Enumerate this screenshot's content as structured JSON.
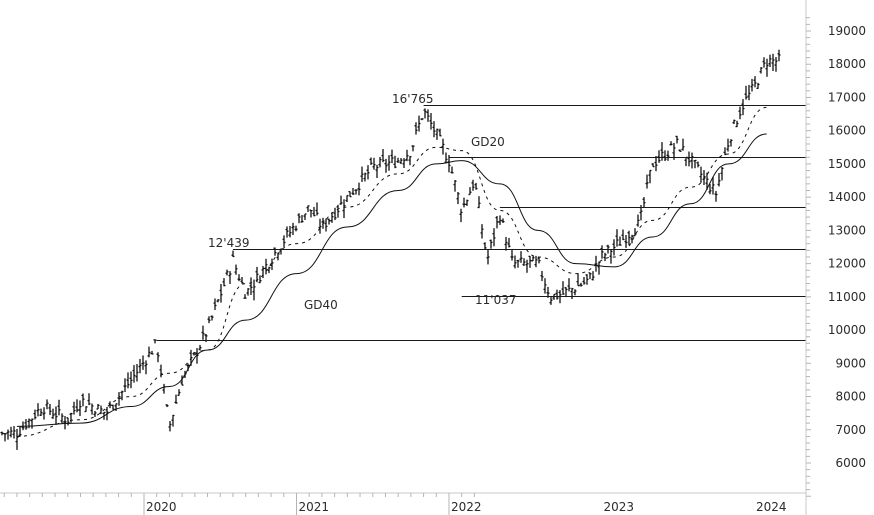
{
  "chart_data": {
    "type": "line",
    "subtype": "ohlc-bar-weekly-with-moving-averages",
    "title": "",
    "xlabel": "",
    "ylabel": "",
    "ylim": [
      5000,
      19500
    ],
    "y_ticks": [
      6000,
      7000,
      8000,
      9000,
      10000,
      11000,
      12000,
      13000,
      14000,
      15000,
      16000,
      17000,
      18000,
      19000
    ],
    "x_ticks": [
      "2020",
      "2021",
      "2022",
      "2023",
      "2024"
    ],
    "grid": false,
    "y_axis_position": "right",
    "annotations": [
      {
        "text": "16'765",
        "value": 16765,
        "type": "level-label"
      },
      {
        "text": "12'439",
        "value": 12439,
        "type": "level-label"
      },
      {
        "text": "11'037",
        "value": 11037,
        "type": "level-label"
      },
      {
        "text": "GD20",
        "type": "moving-average-label"
      },
      {
        "text": "GD40",
        "type": "moving-average-label"
      }
    ],
    "horizontal_levels": [
      {
        "value": 16765,
        "from": "2021-11"
      },
      {
        "value": 15220,
        "from": "2022-01"
      },
      {
        "value": 13700,
        "from": "2022-05"
      },
      {
        "value": 12439,
        "from": "2020-08"
      },
      {
        "value": 11037,
        "from": "2022-02"
      },
      {
        "value": 9700,
        "from": "2020-02"
      }
    ],
    "series": [
      {
        "name": "Price (weekly bars, close approx.)",
        "x": [
          "2019-03",
          "2019-05",
          "2019-07",
          "2019-08",
          "2019-10",
          "2019-12",
          "2020-02",
          "2020-03",
          "2020-04",
          "2020-06",
          "2020-08",
          "2020-09",
          "2020-10",
          "2020-12",
          "2021-02",
          "2021-03",
          "2021-05",
          "2021-07",
          "2021-09",
          "2021-10",
          "2021-11",
          "2021-12",
          "2022-01",
          "2022-02",
          "2022-03",
          "2022-04",
          "2022-05",
          "2022-06",
          "2022-08",
          "2022-09",
          "2022-10",
          "2022-12",
          "2023-01",
          "2023-02",
          "2023-04",
          "2023-05",
          "2023-07",
          "2023-08",
          "2023-10",
          "2023-11",
          "2023-12",
          "2024-01",
          "2024-02"
        ],
        "values": [
          6900,
          7700,
          7300,
          7900,
          7500,
          8500,
          9600,
          7100,
          8500,
          10000,
          12100,
          11100,
          11600,
          12700,
          13700,
          13100,
          14000,
          14900,
          15100,
          15400,
          16600,
          15900,
          15100,
          13600,
          14500,
          12100,
          13500,
          12000,
          12000,
          11000,
          11100,
          11500,
          12200,
          12500,
          13200,
          15000,
          15600,
          15100,
          14100,
          15700,
          16700,
          17300,
          18100
        ]
      },
      {
        "name": "GD20",
        "style": "dashed",
        "x": [
          "2019-03",
          "2019-08",
          "2019-12",
          "2020-03",
          "2020-06",
          "2020-09",
          "2021-01",
          "2021-05",
          "2021-09",
          "2021-12",
          "2022-02",
          "2022-05",
          "2022-08",
          "2022-11",
          "2023-02",
          "2023-05",
          "2023-08",
          "2023-11",
          "2024-02"
        ],
        "values": [
          6800,
          7300,
          8000,
          8700,
          9400,
          11400,
          12600,
          13700,
          14700,
          15500,
          15400,
          13600,
          12200,
          11700,
          12200,
          13300,
          14300,
          15300,
          16700
        ]
      },
      {
        "name": "GD40",
        "style": "solid",
        "x": [
          "2019-03",
          "2019-08",
          "2019-12",
          "2020-03",
          "2020-06",
          "2020-09",
          "2021-01",
          "2021-05",
          "2021-09",
          "2021-12",
          "2022-02",
          "2022-05",
          "2022-08",
          "2022-11",
          "2023-02",
          "2023-05",
          "2023-08",
          "2023-11",
          "2024-02"
        ],
        "values": [
          7100,
          7200,
          7700,
          8300,
          9400,
          10300,
          11700,
          13100,
          14200,
          15000,
          15100,
          14400,
          13000,
          12000,
          11900,
          12800,
          13800,
          15000,
          15900
        ]
      }
    ]
  }
}
